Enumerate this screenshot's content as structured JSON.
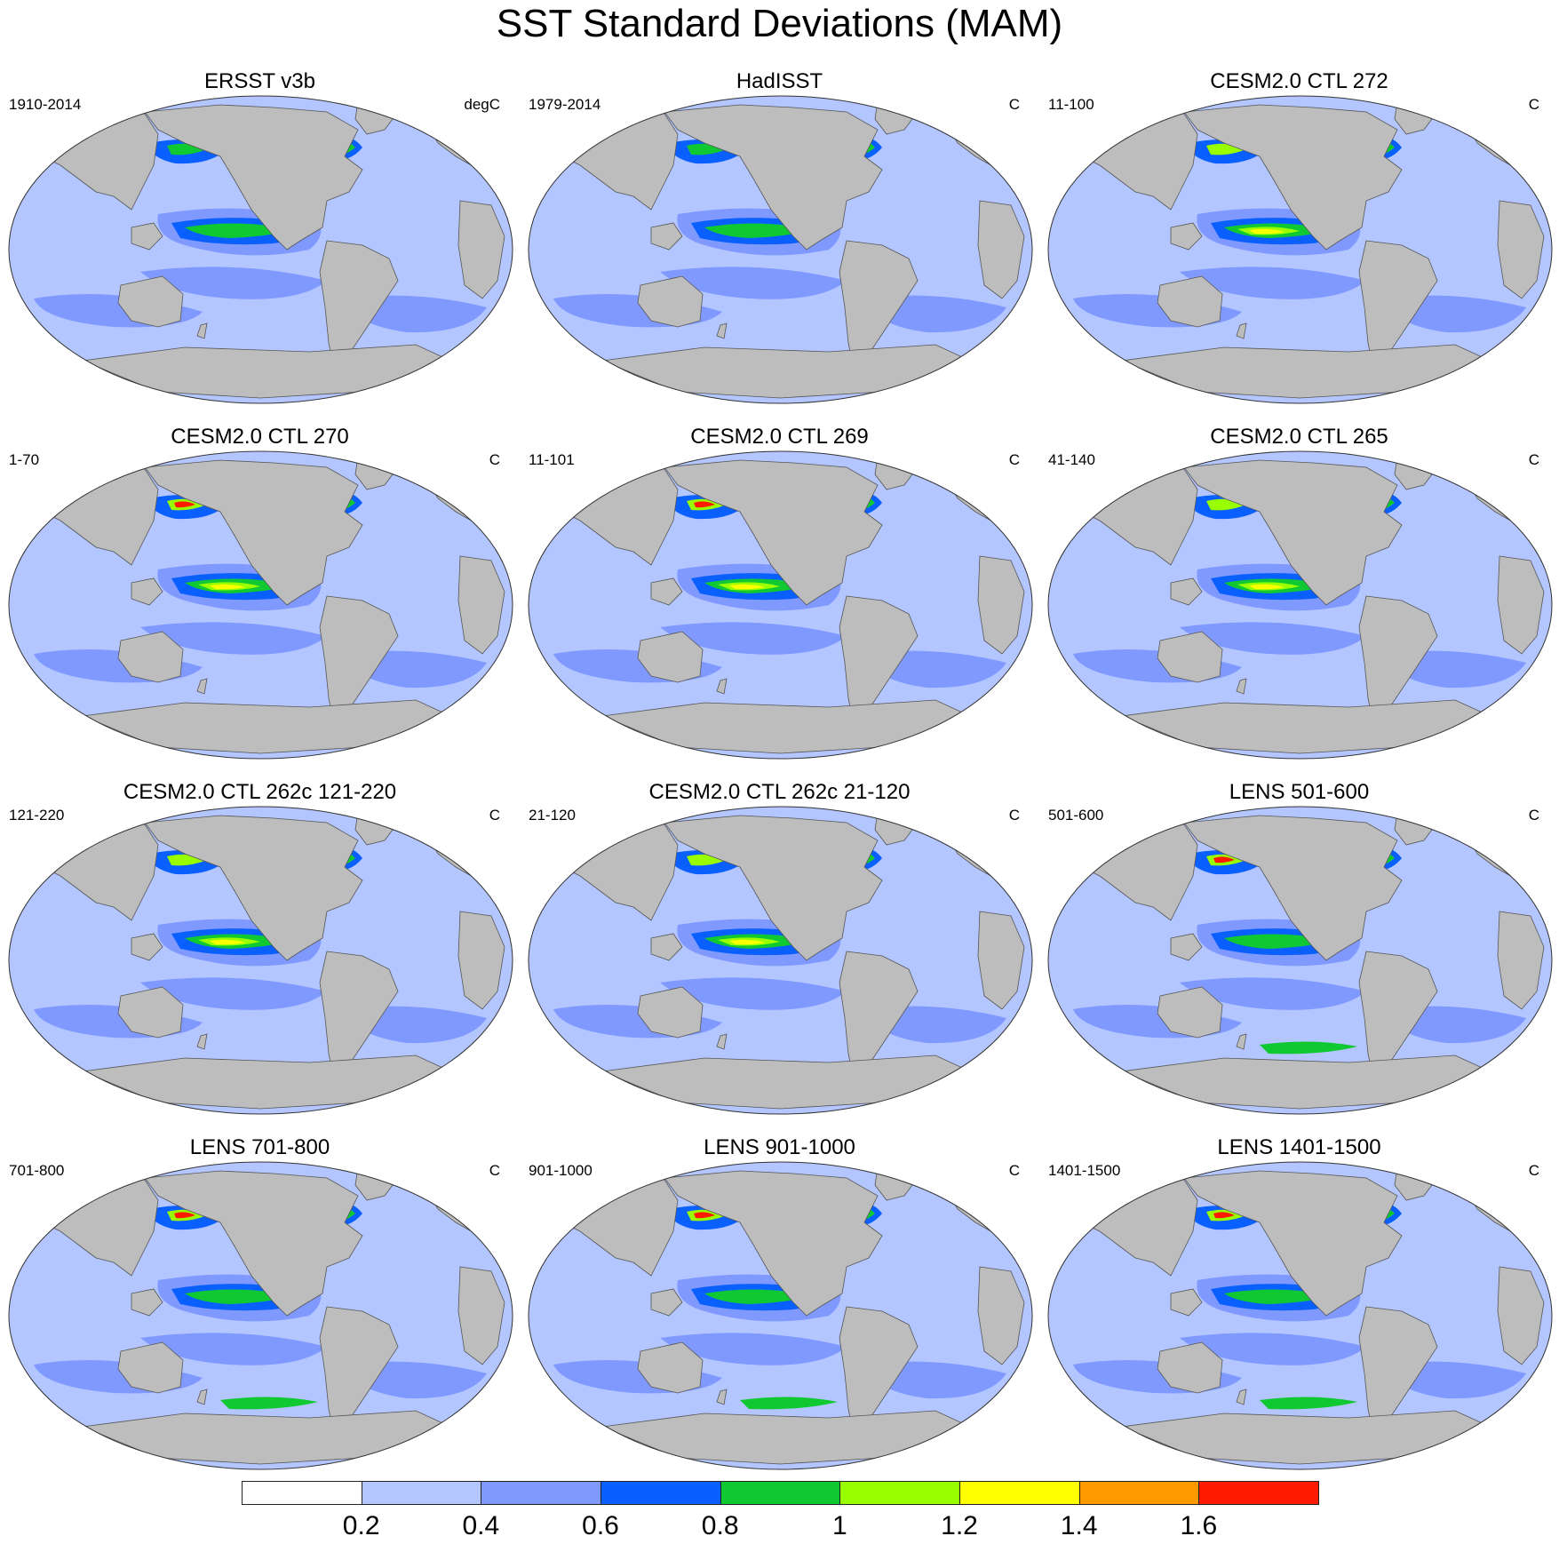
{
  "title": "SST Standard Deviations (MAM)",
  "panels": [
    {
      "title": "ERSST v3b",
      "left": "1910-2014",
      "right": "degC"
    },
    {
      "title": "HadISST",
      "left": "1979-2014",
      "right": "C"
    },
    {
      "title": "CESM2.0 CTL 272",
      "left": "11-100",
      "right": "C"
    },
    {
      "title": "CESM2.0 CTL 270",
      "left": "1-70",
      "right": "C"
    },
    {
      "title": "CESM2.0 CTL 269",
      "left": "11-101",
      "right": "C"
    },
    {
      "title": "CESM2.0 CTL 265",
      "left": "41-140",
      "right": "C"
    },
    {
      "title": "CESM2.0 CTL 262c 121-220",
      "left": "121-220",
      "right": "C"
    },
    {
      "title": "CESM2.0 CTL 262c 21-120",
      "left": "21-120",
      "right": "C"
    },
    {
      "title": "LENS 501-600",
      "left": "501-600",
      "right": "C"
    },
    {
      "title": "LENS 701-800",
      "left": "701-800",
      "right": "C"
    },
    {
      "title": "LENS 901-1000",
      "left": "901-1000",
      "right": "C"
    },
    {
      "title": "LENS 1401-1500",
      "left": "1401-1500",
      "right": "C"
    }
  ],
  "colorbar": {
    "labels": [
      "0.2",
      "0.4",
      "0.6",
      "0.8",
      "1",
      "1.2",
      "1.4",
      "1.6"
    ],
    "colors": [
      "#ffffff",
      "#b3c6ff",
      "#8099ff",
      "#0a60ff",
      "#10c832",
      "#99ff00",
      "#ffff00",
      "#ff9a00",
      "#ff1a00"
    ]
  }
}
